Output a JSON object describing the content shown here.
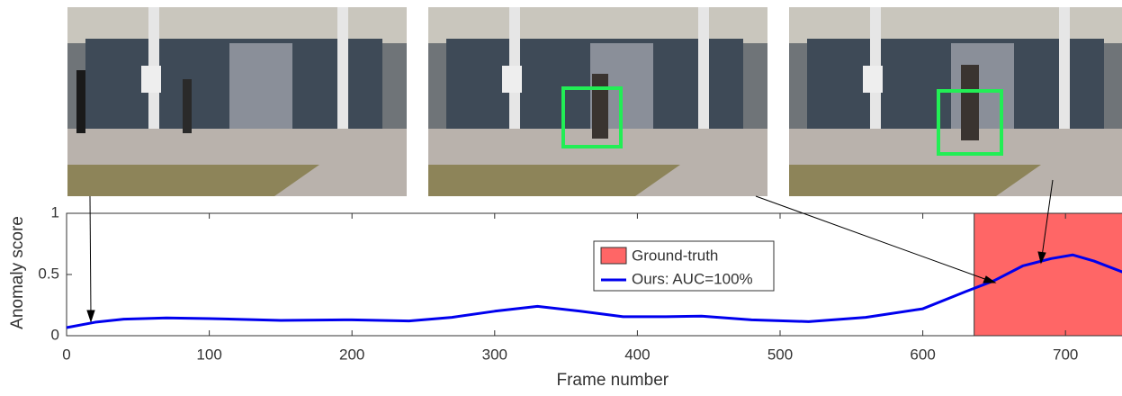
{
  "chart_data": {
    "type": "line",
    "x_label": "Frame number",
    "y_label": "Anomaly score",
    "xlim": [
      0,
      740
    ],
    "ylim": [
      0,
      1
    ],
    "xticks": [
      0,
      100,
      200,
      300,
      400,
      500,
      600,
      700
    ],
    "yticks": [
      0,
      0.5,
      1
    ],
    "ground_truth": {
      "name": "Ground-truth",
      "start": 636,
      "end": 740,
      "color": "#ff6666"
    },
    "x": [
      0,
      20,
      40,
      70,
      100,
      150,
      200,
      240,
      270,
      300,
      330,
      360,
      390,
      420,
      445,
      480,
      520,
      560,
      600,
      630,
      650,
      670,
      690,
      705,
      720,
      740
    ],
    "series": [
      {
        "name": "Ours: AUC=100%",
        "color": "#0000ee",
        "values": [
          0.066,
          0.11,
          0.135,
          0.145,
          0.14,
          0.125,
          0.13,
          0.12,
          0.15,
          0.2,
          0.24,
          0.2,
          0.155,
          0.155,
          0.16,
          0.13,
          0.115,
          0.15,
          0.22,
          0.36,
          0.45,
          0.57,
          0.63,
          0.66,
          0.61,
          0.52
        ]
      }
    ]
  }
}
